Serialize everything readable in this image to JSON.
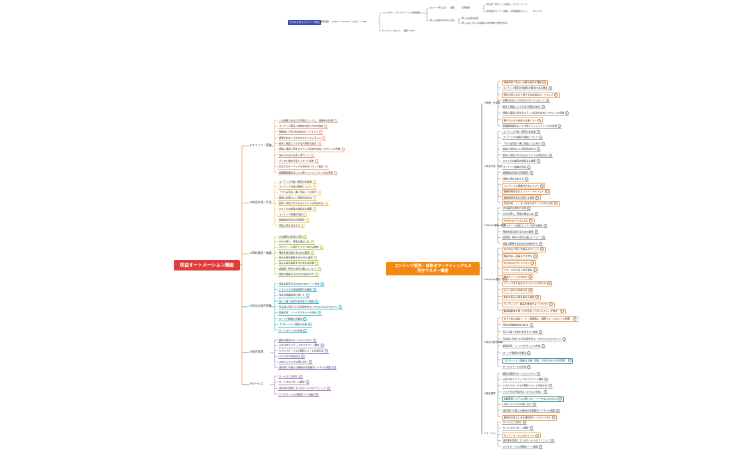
{
  "colors": {
    "left_root": "#e23b3b",
    "right_root": "#f5870f",
    "top_root": "#3b4db0",
    "highlight": "#f39a4c",
    "teal": "#3a9ca0",
    "top_line": "#999999"
  },
  "top_map": {
    "root": "ゼロから作るコンテンツ販売",
    "nodes": [
      "販売講座 — Twitter・YouTube・ブログ — LINE",
      "メルマガLP — サンクスページや自動配信",
      "サンクスしてない人 — 個別へLINE",
      "セミナー申し込み",
      "個別",
      "日時調整",
      "申込者一覧のリンク送信 — セミナーリール",
      "参加者がセミナー視聴 — 参加特典がゲット",
      "LPリンク",
      "申し込み後のLINEから流入",
      "申し込み後は審査",
      "申し込みしない人は返信→LINE返信で個別を送る"
    ]
  },
  "left_map": {
    "root": "収益オートメーション講座",
    "branches": [
      {
        "label": "①マインド・基礎",
        "color": "#f4a57a",
        "items": [
          {
            "t": "この講座であなたが目指すゴールと、講座後の目標"
          },
          {
            "t": "コンテンツ販売=自動化で稼ぐための理由"
          },
          {
            "t": "両論的3ヶ月の完全成功ロードマップ"
          },
          {
            "t": "結果が出ない人がSNSでやっているミス"
          },
          {
            "t": "働きと実業ミングする人間性の統合"
          },
          {
            "t": "情報に値段に関するステップ記述が成功しやすい人の特徴"
          },
          {
            "t": "Wantsの分かる手に使うこと"
          },
          {
            "t": "ブレない軸を作るエッセイト設計"
          },
          {
            "t": "あなたのターゲットを決めるペルソナ設定"
          },
          {
            "t": "価値観価値あることで稼ぐコトシミラトシ式の実現"
          }
        ]
      },
      {
        "label": "②商品作成・作法",
        "color": "#f7c55a",
        "items": [
          {
            "t": "コンテンツ作成一販売の全体像"
          },
          {
            "t": "コンテンツ作成の選択について"
          },
          {
            "t": "「うれる商品・悪い商品」とは何か"
          },
          {
            "t": "最強に効率のいい商品作成方法"
          },
          {
            "t": "素早く完成させられるスライドの作成方法"
          },
          {
            "t": "ヌスミみな動画の撮影法と編集"
          },
          {
            "t": "コンテンツ価格の商品"
          },
          {
            "t": "価格設定商品の商品販売"
          },
          {
            "t": "特典に関する考え方"
          }
        ]
      },
      {
        "label": "③SNS運用・集客",
        "color": "#b5cc4a",
        "items": [
          {
            "t": "SNS運用の本質と目的"
          },
          {
            "t": "SNSで稼ぐ、発信の選ぶには"
          },
          {
            "t": "プロフィール設計とファンを作る発信"
          },
          {
            "t": "発信を毎日続けるための習慣"
          },
          {
            "t": "見込み客を集客するTwitter運用"
          },
          {
            "t": "見込み客を集客するための全体像"
          },
          {
            "t": "拡散数！無料と有料の違いについて"
          },
          {
            "t": "自動で集客するための仕組み作り"
          }
        ]
      },
      {
        "label": "④商品の販売準備",
        "color": "#36b8d0",
        "items": [
          {
            "t": "商品を販売するためのLINEページ作成"
          },
          {
            "t": "エキスパでの商品設置方法解説"
          },
          {
            "t": "商品の価格設定に関して"
          },
          {
            "t": "売上に直つる自分を作る５人検証"
          },
          {
            "t": "売る前に気をつける法律を学ぶ、ProPerLaunchのコツ"
          },
          {
            "t": "動画化案、リードマグネットの作成"
          },
          {
            "t": "ローンチ動画の作業法"
          },
          {
            "t": "プロモーション動画の企画"
          },
          {
            "t": "セールスページの作成"
          }
        ]
      },
      {
        "label": "⑤販売環境",
        "color": "#9b84c8",
        "items": [
          {
            "t": "最新の販売のセールスファネル"
          },
          {
            "t": "公式LINEとステップのアカウント開設"
          },
          {
            "t": "エキスパメールでの登録フォーム作成方法"
          },
          {
            "t": "メルマガの作成方法"
          },
          {
            "t": "LINEとメルマガの使い分け"
          },
          {
            "t": "成約率35%超えの最強の自動販売ファネルの構築"
          }
        ]
      },
      {
        "label": "⑥セールス",
        "color": "#b07ac0",
        "items": [
          {
            "t": "セールスとは何か"
          },
          {
            "t": "セールスのパターン解説"
          },
          {
            "t": "成約率を簡単に上げるセールスのテクニック"
          },
          {
            "t": "ビデオセールスの販売パート解説"
          }
        ]
      }
    ]
  },
  "right_map": {
    "root_line1": "コンテンツ販売・自動化マーケティング3.0",
    "root_line2": "完全マスター講座",
    "branches": [
      {
        "label": "①基礎・全体像",
        "color": "#666666",
        "items": [
          {
            "t": "情報発信で独立に必要な概念を理解",
            "s": "hl"
          },
          {
            "t": "コンテンツ販売の自動化が最強である理由"
          },
          {
            "t": "現代の知らなきゃ損する完全成功ロードマップ",
            "s": "hl"
          },
          {
            "t": "結果が出ない人がSNSでやっているミス"
          },
          {
            "t": "働きと実業ミングする人間性の統合"
          },
          {
            "t": "情報に値段に関するステップ記述が成功しやすい人の特徴"
          },
          {
            "t": "稼げないなら全部やる選ミスト",
            "s": "hl"
          },
          {
            "t": "価値観価値あることで稼ぐコトシミラトシ式の実現"
          }
        ]
      },
      {
        "label": "②商品作成・作法",
        "color": "#666666",
        "items": [
          {
            "t": "コンテンツ作成一販売の全体像"
          },
          {
            "t": "コンテンツの選択の選択について"
          },
          {
            "t": "「うれる商品・悪い商品」とは何か"
          },
          {
            "t": "最強に効率のいい商品作成方法"
          },
          {
            "t": "素早く完成させられるスライドの作成方法"
          },
          {
            "t": "ヌスミみな動画の撮影法と編集"
          },
          {
            "t": "コンテンツ価格の商品"
          },
          {
            "t": "価格設定商品の商品販売"
          },
          {
            "t": "特典に関する考え方"
          },
          {
            "t": "コンテンツの価格付け法について",
            "s": "hl"
          },
          {
            "t": "価格提携商品のメリット・デメリット",
            "s": "hl"
          },
          {
            "t": "価格提携商品を活用する秘密",
            "s": "hl"
          },
          {
            "t": "商品作成、ここまで出来ればサービス化に対応",
            "s": "hl"
          }
        ]
      },
      {
        "label": "③Twitter運用・集客",
        "color": "#666666",
        "items": [
          {
            "t": "SNS運用の本質と目的"
          },
          {
            "t": "SNSで稼ぐ、発信の選ぶには"
          },
          {
            "t": "Twitterのアルゴリズム",
            "s": "hl"
          },
          {
            "t": "プロフィール設計とファンを作る発信"
          },
          {
            "t": "発信を毎日続けるための習慣"
          },
          {
            "t": "拡散数！無料と有料の違いについて"
          },
          {
            "t": "自動で集客するための仕組み作り"
          }
        ]
      },
      {
        "label": "④YouTube運用・集客",
        "color": "#666666",
        "items": [
          {
            "t": "YouTubeで稼ぐ仕組みのメソッド",
            "s": "hl"
          },
          {
            "t": "動画作成一投稿までの流れ",
            "s": "hl"
          },
          {
            "t": "YouTubeのアルゴリズム",
            "s": "hl"
          },
          {
            "t": "リサーチの方法と流行選択",
            "s": "hl"
          },
          {
            "t": "動画タイトルの決め方",
            "s": "hl"
          },
          {
            "t": "クリック率を高めるサムネイルの作り方",
            "s": "hl"
          },
          {
            "t": "正しい台本の作成方法",
            "s": "hl"
          },
          {
            "t": "会社の見込み客を集める解説",
            "s": "hl"
          },
          {
            "t": "ライティング・動画を発信することのコツ",
            "s": "hl"
          },
          {
            "t": "動画編集者を使った外注法（コスト&スムーズ割れ）",
            "s": "hl"
          }
        ]
      },
      {
        "label": "⑤商品の販売準備",
        "color": "#666666",
        "items": [
          {
            "t": "おすすめの成約ツール（高速購入・顧客フォームのリンク設置）",
            "s": "hl"
          },
          {
            "t": "商品の価格設定を決める"
          },
          {
            "t": "売上に直つる自分を作る５人検証"
          },
          {
            "t": "売る前に気をつける法律を学ぶ、ProPerLaunchのコツ"
          },
          {
            "t": "動画化案、リードマグネットの作成"
          },
          {
            "t": "ローンチ動画の作業法"
          },
          {
            "t": "プロモーション動画の企画（追加：ProPerLaunchの活用）",
            "s": "teal"
          },
          {
            "t": "セールスページの作成"
          }
        ]
      },
      {
        "label": "⑥販売環境",
        "color": "#666666",
        "items": [
          {
            "t": "最新の販売のセールスファネル"
          },
          {
            "t": "公式LINEとステップのアカウント開設"
          },
          {
            "t": "エキスパメールでの登録フォーム作成方法"
          },
          {
            "t": "メルマガの作成方法（エキスパ対応）"
          },
          {
            "t": "自動販売システムの使い方ノート→https://tally.so",
            "s": "teal"
          },
          {
            "t": "LINEとメルマガの使い分け"
          },
          {
            "t": "成約率35%超えの最強の自動販売ファネルの構築"
          },
          {
            "t": "最後成功者まとめる通知型セールスファネル",
            "s": "hl"
          }
        ]
      },
      {
        "label": "⑦セールス",
        "color": "#666666",
        "items": [
          {
            "t": "セールスとは何か"
          },
          {
            "t": "セールスのパターン解説"
          },
          {
            "t": "セミナーセールスのポイント",
            "s": "hl"
          },
          {
            "t": "成約率を簡単に上げるセールスのテクニック"
          },
          {
            "t": "ビデオセールスの販売パート解説"
          }
        ]
      }
    ]
  }
}
